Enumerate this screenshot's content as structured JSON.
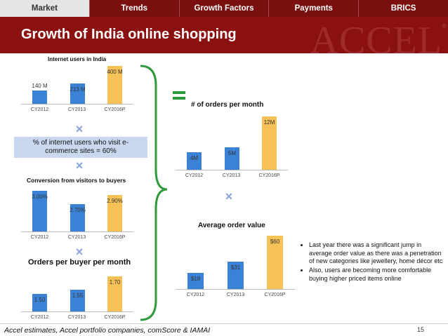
{
  "nav": {
    "tabs": [
      {
        "label": "Market",
        "active": true
      },
      {
        "label": "Trends",
        "active": false
      },
      {
        "label": "Growth Factors",
        "active": false
      },
      {
        "label": "Payments",
        "active": false
      },
      {
        "label": "BRICS",
        "active": false
      }
    ]
  },
  "header": {
    "title": "Growth of India online shopping",
    "watermark": "ACCEL",
    "watermark_mark": "®"
  },
  "colors": {
    "tab_bar": "#7a0f0f",
    "title_bar": "#8b1111",
    "bar_blue": "#3b82d6",
    "bar_gold": "#f6c156",
    "info_box": "#c9d8ef",
    "bracket": "#2e9a3c"
  },
  "icons": {
    "multiply": "×",
    "equals": "equals-icon",
    "bracket": "right-curly-brace"
  },
  "info_box": {
    "text": "% of internet users who visit e-commerce sites = 60%"
  },
  "bullets": [
    "Last year there was a significant jump in average order value as there was a penetration of new categories like jewellery, home décor etc",
    "Also, users are becoming more comfortable buying higher priced items online"
  ],
  "footer": {
    "source": "Accel estimates, Accel portfolio companies, comScore & IAMAI",
    "page_number": "15"
  },
  "chart_data": [
    {
      "id": "internet_users",
      "type": "bar",
      "title": "Internet users in India",
      "categories": [
        "CY2012",
        "CY2013",
        "CY2016P"
      ],
      "values": [
        140,
        213,
        400
      ],
      "labels": [
        "140 M",
        "213 M",
        "400 M"
      ],
      "colors": [
        "#3b82d6",
        "#3b82d6",
        "#f6c156"
      ],
      "ylim": [
        0,
        400
      ]
    },
    {
      "id": "conversion",
      "type": "bar",
      "title": "Conversion from visitors to buyers",
      "categories": [
        "CY2012",
        "CY2013",
        "CY2016P"
      ],
      "values": [
        3.0,
        2.7,
        2.9
      ],
      "labels": [
        "3.00%",
        "2.70%",
        "2.90%"
      ],
      "colors": [
        "#3b82d6",
        "#3b82d6",
        "#f6c156"
      ],
      "ylim": [
        2.1,
        3.0
      ]
    },
    {
      "id": "orders_per_buyer",
      "type": "bar",
      "title": "Orders per buyer per month",
      "categories": [
        "CY2012",
        "CY2013",
        "CY2016P"
      ],
      "values": [
        1.5,
        1.55,
        1.7
      ],
      "labels": [
        "1.50",
        "1.55",
        "1.70"
      ],
      "colors": [
        "#3b82d6",
        "#3b82d6",
        "#f6c156"
      ],
      "ylim": [
        1.3,
        1.7
      ]
    },
    {
      "id": "orders_per_month",
      "type": "bar",
      "title": "# of orders per month",
      "categories": [
        "CY2012",
        "CY2013",
        "CY2016P"
      ],
      "values": [
        4,
        5,
        12
      ],
      "labels": [
        "4M",
        "5M",
        "12M"
      ],
      "colors": [
        "#3b82d6",
        "#3b82d6",
        "#f6c156"
      ],
      "ylim": [
        0,
        12
      ]
    },
    {
      "id": "avg_order_value",
      "type": "bar",
      "title": "Average order value",
      "categories": [
        "CY2012",
        "CY2013",
        "CY2016P"
      ],
      "values": [
        18,
        31,
        60
      ],
      "labels": [
        "$18",
        "$31",
        "$60"
      ],
      "colors": [
        "#3b82d6",
        "#3b82d6",
        "#f6c156"
      ],
      "ylim": [
        0,
        60
      ]
    }
  ]
}
